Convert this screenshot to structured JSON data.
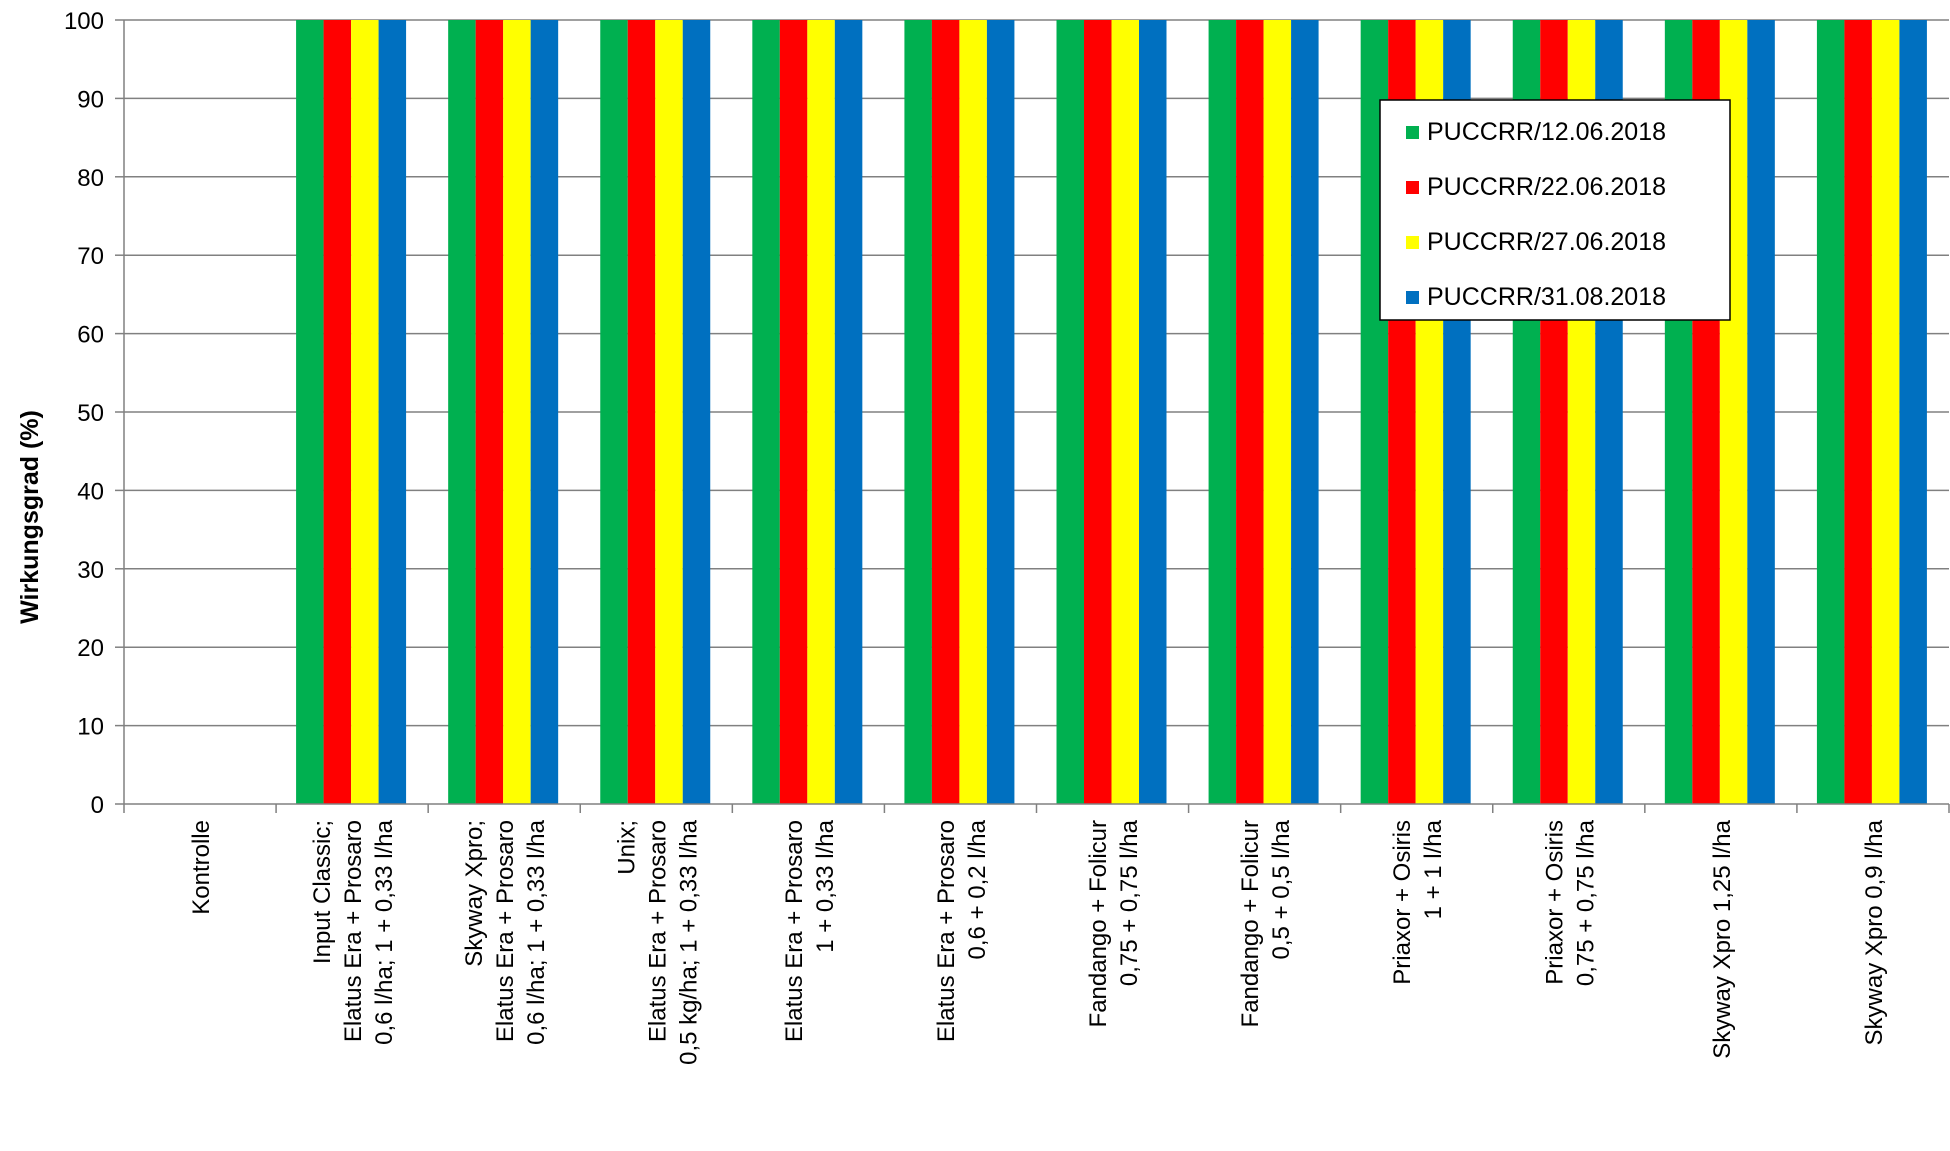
{
  "chart_data": {
    "type": "bar",
    "title": "",
    "xlabel": "",
    "ylabel": "Wirkungsgrad (%)",
    "ylim": [
      0,
      100
    ],
    "yticks": [
      0,
      10,
      20,
      30,
      40,
      50,
      60,
      70,
      80,
      90,
      100
    ],
    "grid": true,
    "legend_position": "upper-right (inside plot)",
    "categories": [
      [
        "Kontrolle"
      ],
      [
        "Input Classic;",
        "Elatus Era + Prosaro",
        "0,6 l/ha; 1 + 0,33 l/ha"
      ],
      [
        "Skyway Xpro;",
        "Elatus Era + Prosaro",
        "0,6 l/ha; 1 + 0,33 l/ha"
      ],
      [
        "Unix;",
        "Elatus Era + Prosaro",
        "0,5 kg/ha; 1 + 0,33 l/ha"
      ],
      [
        "Elatus Era + Prosaro",
        "1 + 0,33 l/ha"
      ],
      [
        "Elatus Era + Prosaro",
        "0,6 + 0,2 l/ha"
      ],
      [
        "Fandango + Folicur",
        "0,75 + 0,75 l/ha"
      ],
      [
        "Fandango + Folicur",
        "0,5 + 0,5 l/ha"
      ],
      [
        "Priaxor + Osiris",
        "1 + 1 l/ha"
      ],
      [
        "Priaxor + Osiris",
        "0,75 + 0,75 l/ha"
      ],
      [
        "Skyway Xpro 1,25 l/ha"
      ],
      [
        "Skyway Xpro 0,9 l/ha"
      ]
    ],
    "series": [
      {
        "name": "PUCCRR/12.06.2018",
        "color": "#00b050",
        "values": [
          0,
          100,
          100,
          100,
          100,
          100,
          100,
          100,
          100,
          100,
          100,
          100
        ]
      },
      {
        "name": "PUCCRR/22.06.2018",
        "color": "#ff0000",
        "values": [
          0,
          100,
          100,
          100,
          100,
          100,
          100,
          100,
          100,
          100,
          100,
          100
        ]
      },
      {
        "name": "PUCCRR/27.06.2018",
        "color": "#ffff00",
        "values": [
          0,
          100,
          100,
          100,
          100,
          100,
          100,
          100,
          100,
          100,
          100,
          100
        ]
      },
      {
        "name": "PUCCRR/31.08.2018",
        "color": "#0070c0",
        "values": [
          0,
          100,
          100,
          100,
          100,
          100,
          100,
          100,
          100,
          100,
          100,
          100
        ]
      }
    ]
  }
}
